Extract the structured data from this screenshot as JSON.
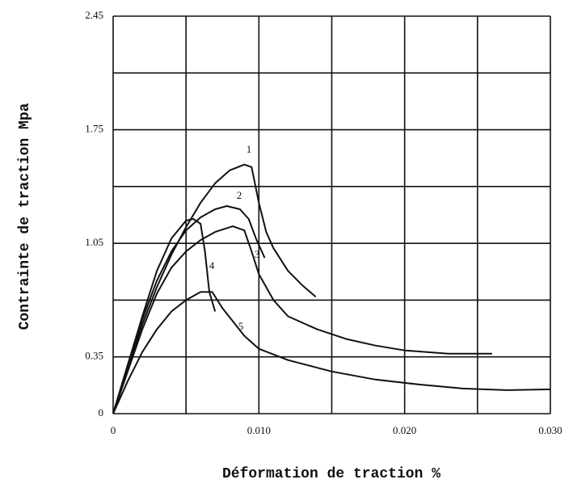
{
  "chart_data": {
    "type": "line",
    "xlabel": "Déformation de traction %",
    "ylabel": "Contrainte de traction  Mpa",
    "xlim": [
      0,
      0.03
    ],
    "ylim": [
      0,
      2.45
    ],
    "xticks": [
      0,
      {
        "value": 0.01,
        "label": "0.010"
      },
      {
        "value": 0.02,
        "label": "0.020"
      },
      {
        "value": 0.03,
        "label": "0.030"
      }
    ],
    "yticks": [
      0,
      0.35,
      1.05,
      1.75,
      2.45
    ],
    "xgrid_minor": [
      0.005,
      0.015,
      0.025
    ],
    "ygrid_minor": [
      0.7,
      1.4,
      2.1
    ],
    "grid": true,
    "series": [
      {
        "name": "1",
        "color": "#111111",
        "x": [
          0,
          0.001,
          0.002,
          0.003,
          0.004,
          0.005,
          0.006,
          0.007,
          0.008,
          0.009,
          0.0095,
          0.01,
          0.0105,
          0.011,
          0.012,
          0.013,
          0.0139
        ],
        "values": [
          0,
          0.28,
          0.55,
          0.78,
          0.98,
          1.15,
          1.3,
          1.42,
          1.5,
          1.535,
          1.52,
          1.3,
          1.12,
          1.02,
          0.88,
          0.79,
          0.72
        ]
      },
      {
        "name": "2",
        "color": "#111111",
        "x": [
          0,
          0.001,
          0.002,
          0.003,
          0.004,
          0.005,
          0.006,
          0.007,
          0.0078,
          0.0087,
          0.0093,
          0.0098,
          0.0104
        ],
        "values": [
          0,
          0.3,
          0.58,
          0.82,
          1.0,
          1.13,
          1.21,
          1.26,
          1.28,
          1.26,
          1.2,
          1.08,
          0.96
        ]
      },
      {
        "name": "3",
        "color": "#111111",
        "x": [
          0,
          0.001,
          0.002,
          0.003,
          0.004,
          0.005,
          0.006,
          0.007,
          0.0082,
          0.009,
          0.0095,
          0.01,
          0.011,
          0.012,
          0.014,
          0.016,
          0.018,
          0.02,
          0.023,
          0.026
        ],
        "values": [
          0,
          0.26,
          0.52,
          0.74,
          0.9,
          1.0,
          1.07,
          1.12,
          1.155,
          1.13,
          1.0,
          0.86,
          0.7,
          0.6,
          0.52,
          0.46,
          0.42,
          0.39,
          0.37,
          0.37
        ]
      },
      {
        "name": "4",
        "color": "#111111",
        "x": [
          0,
          0.001,
          0.002,
          0.003,
          0.004,
          0.005,
          0.0055,
          0.006,
          0.0063,
          0.0066,
          0.007
        ],
        "values": [
          0,
          0.3,
          0.6,
          0.88,
          1.08,
          1.19,
          1.2,
          1.17,
          1.0,
          0.75,
          0.63
        ]
      },
      {
        "name": "5",
        "color": "#111111",
        "x": [
          0,
          0.001,
          0.002,
          0.003,
          0.004,
          0.005,
          0.006,
          0.0068,
          0.0075,
          0.009,
          0.01,
          0.012,
          0.015,
          0.018,
          0.021,
          0.024,
          0.027,
          0.03
        ],
        "values": [
          0,
          0.2,
          0.38,
          0.52,
          0.63,
          0.7,
          0.75,
          0.75,
          0.65,
          0.48,
          0.4,
          0.33,
          0.26,
          0.21,
          0.18,
          0.155,
          0.145,
          0.15
        ]
      }
    ]
  }
}
